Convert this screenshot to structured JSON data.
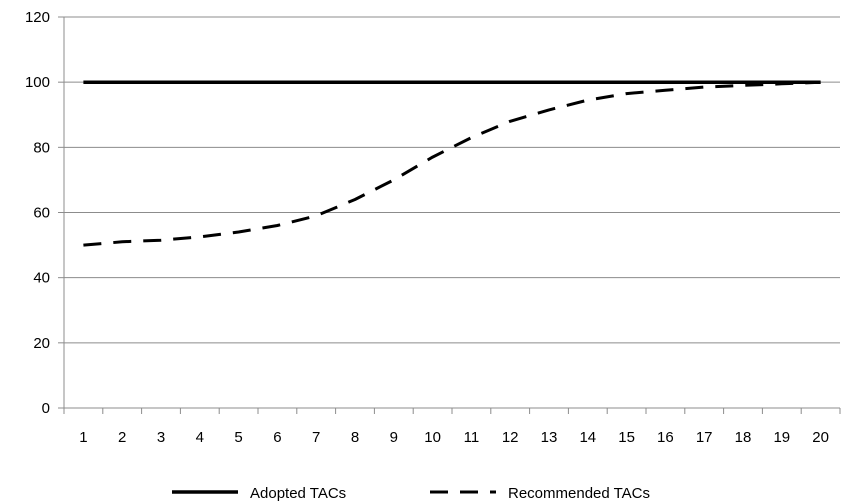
{
  "chart_data": {
    "type": "line",
    "x": [
      1,
      2,
      3,
      4,
      5,
      6,
      7,
      8,
      9,
      10,
      11,
      12,
      13,
      14,
      15,
      16,
      17,
      18,
      19,
      20
    ],
    "ylim": [
      0,
      120
    ],
    "yticks": [
      0,
      20,
      40,
      60,
      80,
      100,
      120
    ],
    "grid": true,
    "legend_position": "bottom",
    "series": [
      {
        "name": "Adopted TACs",
        "style": "solid",
        "color": "#000000",
        "values": [
          100,
          100,
          100,
          100,
          100,
          100,
          100,
          100,
          100,
          100,
          100,
          100,
          100,
          100,
          100,
          100,
          100,
          100,
          100,
          100
        ]
      },
      {
        "name": "Recommended TACs",
        "style": "dashed",
        "color": "#000000",
        "values": [
          50,
          51,
          51.5,
          52.5,
          54,
          56,
          59,
          64,
          70,
          77,
          83,
          88,
          91.5,
          94.5,
          96.5,
          97.5,
          98.5,
          99,
          99.5,
          100
        ]
      }
    ]
  }
}
